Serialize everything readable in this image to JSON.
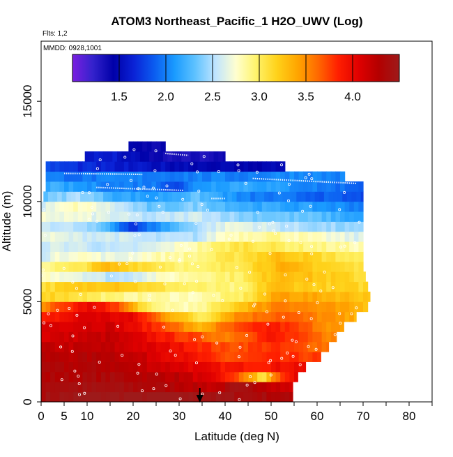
{
  "chart_data": {
    "type": "heatmap",
    "title": "ATOM3 Northeast_Pacific_1 H2O_UWV (Log)",
    "flights_note": "Flts: 1,2",
    "dates_note": "MMDD: 0928,1001",
    "xlabel": "Latitude (deg N)",
    "ylabel": "Altitude (m)",
    "xlim": [
      0,
      85
    ],
    "ylim": [
      0,
      18000
    ],
    "x_ticks": [
      0,
      5,
      10,
      20,
      30,
      40,
      50,
      60,
      70,
      80
    ],
    "x_tick_labels": [
      "0",
      "5",
      "10",
      "20",
      "30",
      "40",
      "50",
      "60",
      "70",
      "80"
    ],
    "y_ticks": [
      0,
      5000,
      10000,
      15000
    ],
    "y_tick_labels": [
      "0",
      "5000",
      "10000",
      "15000"
    ],
    "colorbar": {
      "min": 1.0,
      "max": 4.5,
      "ticks": [
        1.5,
        2.0,
        2.5,
        3.0,
        3.5,
        4.0
      ],
      "tick_labels": [
        "1.5",
        "2.0",
        "2.5",
        "3.0",
        "3.5",
        "4.0"
      ],
      "colors": [
        "#7a1fe0",
        "#3322cc",
        "#0000a8",
        "#0a22d6",
        "#0b5cf0",
        "#1a9bff",
        "#5ec2ff",
        "#bfe4ff",
        "#ffffd0",
        "#fff36a",
        "#ffd21a",
        "#ffa600",
        "#ff6a00",
        "#ff1f00",
        "#e00000",
        "#b30000",
        "#9e1a1a"
      ]
    },
    "marker": {
      "type": "arrow",
      "latitude": 34.5
    },
    "altitude_bins": [
      {
        "alt_bottom": 0,
        "alt_top": 500,
        "lat_min": 0,
        "lat_max": 54.7,
        "profile": [
          [
            0,
            4.4
          ],
          [
            10,
            4.5
          ],
          [
            30,
            4.5
          ],
          [
            45,
            4.4
          ],
          [
            54.7,
            4.3
          ]
        ]
      },
      {
        "alt_bottom": 500,
        "alt_top": 1000,
        "lat_min": 0,
        "lat_max": 54.7,
        "profile": [
          [
            0,
            4.4
          ],
          [
            15,
            4.4
          ],
          [
            30,
            4.3
          ],
          [
            38,
            4.2
          ],
          [
            42,
            4.4
          ],
          [
            48,
            4.3
          ],
          [
            54.7,
            4.1
          ]
        ]
      },
      {
        "alt_bottom": 1000,
        "alt_top": 1500,
        "lat_min": 0,
        "lat_max": 55.8,
        "profile": [
          [
            0,
            4.3
          ],
          [
            15,
            4.35
          ],
          [
            30,
            4.25
          ],
          [
            40,
            3.9
          ],
          [
            46,
            3.4
          ],
          [
            48,
            3.0
          ],
          [
            51,
            3.6
          ],
          [
            55.8,
            4.1
          ]
        ]
      },
      {
        "alt_bottom": 1500,
        "alt_top": 2000,
        "lat_min": 0,
        "lat_max": 57.5,
        "profile": [
          [
            0,
            4.3
          ],
          [
            15,
            4.3
          ],
          [
            30,
            4.1
          ],
          [
            40,
            3.9
          ],
          [
            48,
            3.9
          ],
          [
            57.5,
            4.0
          ]
        ]
      },
      {
        "alt_bottom": 2000,
        "alt_top": 2500,
        "lat_min": 0,
        "lat_max": 60.8,
        "profile": [
          [
            0,
            4.25
          ],
          [
            15,
            4.3
          ],
          [
            30,
            4.0
          ],
          [
            40,
            3.7
          ],
          [
            50,
            3.8
          ],
          [
            60.8,
            3.75
          ]
        ]
      },
      {
        "alt_bottom": 2500,
        "alt_top": 3000,
        "lat_min": 0,
        "lat_max": 62.5,
        "profile": [
          [
            0,
            4.2
          ],
          [
            15,
            4.2
          ],
          [
            30,
            3.95
          ],
          [
            40,
            3.7
          ],
          [
            50,
            3.8
          ],
          [
            62.5,
            3.6
          ]
        ]
      },
      {
        "alt_bottom": 3000,
        "alt_top": 3500,
        "lat_min": 0,
        "lat_max": 64.2,
        "profile": [
          [
            0,
            4.1
          ],
          [
            15,
            4.2
          ],
          [
            30,
            3.8
          ],
          [
            40,
            3.55
          ],
          [
            50,
            3.9
          ],
          [
            64.2,
            3.5
          ]
        ]
      },
      {
        "alt_bottom": 3500,
        "alt_top": 4000,
        "lat_min": 0,
        "lat_max": 65.8,
        "profile": [
          [
            0,
            4.1
          ],
          [
            15,
            4.15
          ],
          [
            28,
            3.7
          ],
          [
            34,
            3.3
          ],
          [
            40,
            3.6
          ],
          [
            50,
            3.9
          ],
          [
            65.8,
            3.4
          ]
        ]
      },
      {
        "alt_bottom": 4000,
        "alt_top": 4500,
        "lat_min": 0,
        "lat_max": 68.5,
        "profile": [
          [
            0,
            3.8
          ],
          [
            10,
            4.1
          ],
          [
            20,
            4.0
          ],
          [
            28,
            3.4
          ],
          [
            35,
            3.0
          ],
          [
            42,
            3.5
          ],
          [
            52,
            3.7
          ],
          [
            68.5,
            3.35
          ]
        ]
      },
      {
        "alt_bottom": 4500,
        "alt_top": 5000,
        "lat_min": 0,
        "lat_max": 71,
        "profile": [
          [
            0,
            3.5
          ],
          [
            10,
            4.0
          ],
          [
            16,
            3.8
          ],
          [
            24,
            2.9
          ],
          [
            34,
            2.8
          ],
          [
            44,
            3.3
          ],
          [
            52,
            3.6
          ],
          [
            71,
            3.3
          ]
        ]
      },
      {
        "alt_bottom": 5000,
        "alt_top": 5500,
        "lat_min": 0,
        "lat_max": 71.5,
        "profile": [
          [
            0,
            3.2
          ],
          [
            8,
            3.1
          ],
          [
            16,
            2.9
          ],
          [
            24,
            2.85
          ],
          [
            34,
            2.8
          ],
          [
            44,
            3.0
          ],
          [
            52,
            3.45
          ],
          [
            71.5,
            3.25
          ]
        ]
      },
      {
        "alt_bottom": 5500,
        "alt_top": 6000,
        "lat_min": 0,
        "lat_max": 71,
        "profile": [
          [
            0,
            3.1
          ],
          [
            8,
            3.2
          ],
          [
            16,
            3.3
          ],
          [
            24,
            3.1
          ],
          [
            34,
            2.95
          ],
          [
            44,
            2.9
          ],
          [
            50,
            3.3
          ],
          [
            60,
            3.2
          ],
          [
            71,
            3.15
          ]
        ]
      },
      {
        "alt_bottom": 6000,
        "alt_top": 6500,
        "lat_min": 0,
        "lat_max": 70.5,
        "profile": [
          [
            0,
            2.8
          ],
          [
            8,
            2.7
          ],
          [
            16,
            2.5
          ],
          [
            24,
            2.7
          ],
          [
            34,
            2.9
          ],
          [
            44,
            3.0
          ],
          [
            52,
            3.35
          ],
          [
            70.5,
            3.1
          ]
        ]
      },
      {
        "alt_bottom": 6500,
        "alt_top": 7000,
        "lat_min": 0,
        "lat_max": 70,
        "profile": [
          [
            0,
            2.9
          ],
          [
            8,
            3.0
          ],
          [
            14,
            3.3
          ],
          [
            24,
            3.1
          ],
          [
            34,
            2.9
          ],
          [
            44,
            3.1
          ],
          [
            52,
            3.35
          ],
          [
            70,
            3.05
          ]
        ]
      },
      {
        "alt_bottom": 7000,
        "alt_top": 7500,
        "lat_min": 0,
        "lat_max": 70,
        "profile": [
          [
            0,
            2.6
          ],
          [
            8,
            2.8
          ],
          [
            16,
            2.65
          ],
          [
            24,
            2.8
          ],
          [
            34,
            2.9
          ],
          [
            44,
            3.1
          ],
          [
            52,
            3.3
          ],
          [
            70,
            2.95
          ]
        ]
      },
      {
        "alt_bottom": 7500,
        "alt_top": 8000,
        "lat_min": 0,
        "lat_max": 70,
        "profile": [
          [
            0,
            2.6
          ],
          [
            8,
            2.6
          ],
          [
            16,
            2.5
          ],
          [
            24,
            2.6
          ],
          [
            34,
            2.85
          ],
          [
            44,
            3.1
          ],
          [
            52,
            3.0
          ],
          [
            70,
            2.8
          ]
        ]
      },
      {
        "alt_bottom": 8000,
        "alt_top": 8500,
        "lat_min": 0,
        "lat_max": 70,
        "profile": [
          [
            0,
            2.7
          ],
          [
            8,
            2.6
          ],
          [
            16,
            2.6
          ],
          [
            24,
            2.5
          ],
          [
            34,
            2.5
          ],
          [
            40,
            2.8
          ],
          [
            50,
            2.9
          ],
          [
            70,
            2.6
          ]
        ]
      },
      {
        "alt_bottom": 8500,
        "alt_top": 9000,
        "lat_min": 0,
        "lat_max": 70,
        "profile": [
          [
            0,
            2.6
          ],
          [
            8,
            2.5
          ],
          [
            14,
            2.3
          ],
          [
            20,
            1.7
          ],
          [
            24,
            2.0
          ],
          [
            34,
            2.5
          ],
          [
            42,
            2.7
          ],
          [
            55,
            2.5
          ],
          [
            70,
            2.4
          ]
        ]
      },
      {
        "alt_bottom": 9000,
        "alt_top": 9500,
        "lat_min": 0,
        "lat_max": 70,
        "profile": [
          [
            0,
            2.7
          ],
          [
            8,
            2.7
          ],
          [
            16,
            2.6
          ],
          [
            24,
            2.5
          ],
          [
            34,
            2.6
          ],
          [
            44,
            2.4
          ],
          [
            60,
            2.3
          ],
          [
            70,
            2.1
          ]
        ]
      },
      {
        "alt_bottom": 9500,
        "alt_top": 10000,
        "lat_min": 0,
        "lat_max": 70,
        "profile": [
          [
            0,
            2.6
          ],
          [
            8,
            2.8
          ],
          [
            16,
            2.6
          ],
          [
            24,
            2.3
          ],
          [
            34,
            2.4
          ],
          [
            44,
            2.2
          ],
          [
            60,
            2.1
          ],
          [
            70,
            2.0
          ]
        ]
      },
      {
        "alt_bottom": 10000,
        "alt_top": 10500,
        "lat_min": 0.5,
        "lat_max": 70,
        "profile": [
          [
            0.5,
            2.3
          ],
          [
            8,
            2.5
          ],
          [
            16,
            2.2
          ],
          [
            24,
            2.1
          ],
          [
            34,
            2.3
          ],
          [
            44,
            2.0
          ],
          [
            60,
            1.9
          ],
          [
            70,
            1.8
          ]
        ]
      },
      {
        "alt_bottom": 10500,
        "alt_top": 11000,
        "lat_min": 1,
        "lat_max": 70,
        "profile": [
          [
            1,
            2.2
          ],
          [
            8,
            2.1
          ],
          [
            16,
            2.0
          ],
          [
            24,
            2.0
          ],
          [
            30,
            1.8
          ],
          [
            34,
            2.1
          ],
          [
            44,
            2.2
          ],
          [
            60,
            2.0
          ],
          [
            70,
            1.9
          ]
        ]
      },
      {
        "alt_bottom": 11000,
        "alt_top": 11500,
        "lat_min": 1,
        "lat_max": 66,
        "profile": [
          [
            1,
            2.0
          ],
          [
            8,
            1.95
          ],
          [
            16,
            2.0
          ],
          [
            24,
            2.0
          ],
          [
            34,
            2.0
          ],
          [
            44,
            2.0
          ],
          [
            55,
            2.05
          ],
          [
            66,
            2.0
          ]
        ]
      },
      {
        "alt_bottom": 11500,
        "alt_top": 12000,
        "lat_min": 1,
        "lat_max": 53,
        "profile": [
          [
            1,
            1.8
          ],
          [
            8,
            1.7
          ],
          [
            16,
            1.6
          ],
          [
            24,
            1.55
          ],
          [
            34,
            1.5
          ],
          [
            44,
            1.45
          ],
          [
            53,
            1.5
          ]
        ]
      },
      {
        "alt_bottom": 12000,
        "alt_top": 12500,
        "lat_min": 9.5,
        "lat_max": 40,
        "profile": [
          [
            9.5,
            1.6
          ],
          [
            16,
            1.6
          ],
          [
            24,
            1.4
          ],
          [
            30,
            1.3
          ],
          [
            40,
            1.35
          ]
        ]
      },
      {
        "alt_bottom": 12500,
        "alt_top": 13000,
        "lat_min": 19,
        "lat_max": 27,
        "profile": [
          [
            19,
            1.45
          ],
          [
            23,
            1.4
          ],
          [
            27,
            1.4
          ]
        ]
      }
    ]
  }
}
